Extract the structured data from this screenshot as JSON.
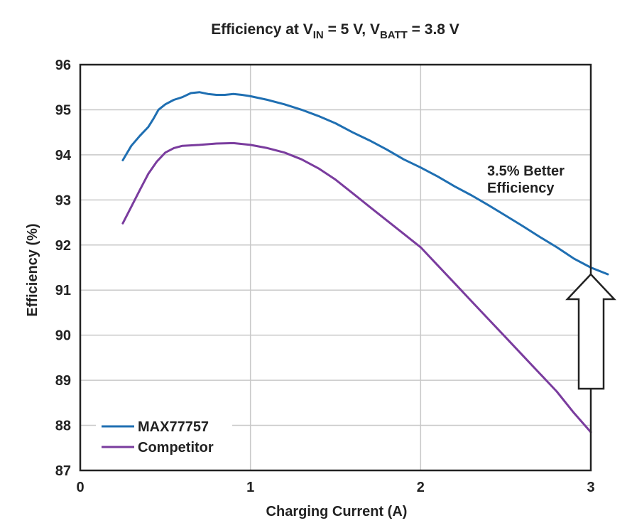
{
  "chart_data": {
    "type": "line",
    "title": {
      "prefix": "Efficiency at V",
      "sub1": "IN",
      "mid": " = 5 V, V",
      "sub2": "BATT",
      "suffix": " = 3.8 V"
    },
    "xlabel": "Charging Current (A)",
    "ylabel": "Efficiency (%)",
    "xlim": [
      0,
      3.1
    ],
    "ylim": [
      87,
      96
    ],
    "xticks": [
      0,
      1,
      2,
      3
    ],
    "yticks": [
      87,
      88,
      89,
      90,
      91,
      92,
      93,
      94,
      95,
      96
    ],
    "grid": true,
    "legend_position": "bottom-left",
    "series": [
      {
        "name": "MAX77757",
        "color": "#1f6fb2",
        "x": [
          0.25,
          0.3,
          0.35,
          0.4,
          0.43,
          0.46,
          0.5,
          0.55,
          0.6,
          0.65,
          0.7,
          0.75,
          0.8,
          0.85,
          0.9,
          0.95,
          1.0,
          1.1,
          1.2,
          1.3,
          1.4,
          1.5,
          1.6,
          1.7,
          1.8,
          1.9,
          2.0,
          2.1,
          2.2,
          2.3,
          2.4,
          2.5,
          2.6,
          2.7,
          2.8,
          2.9,
          3.0,
          3.1
        ],
        "values": [
          93.88,
          94.2,
          94.42,
          94.62,
          94.8,
          95.0,
          95.12,
          95.22,
          95.28,
          95.37,
          95.39,
          95.35,
          95.33,
          95.33,
          95.35,
          95.33,
          95.3,
          95.22,
          95.12,
          95.0,
          94.86,
          94.7,
          94.5,
          94.32,
          94.12,
          93.9,
          93.72,
          93.52,
          93.3,
          93.1,
          92.88,
          92.65,
          92.42,
          92.18,
          91.95,
          91.7,
          91.5,
          91.35
        ]
      },
      {
        "name": "Competitor",
        "color": "#7a3c9e",
        "x": [
          0.25,
          0.3,
          0.35,
          0.4,
          0.45,
          0.5,
          0.55,
          0.6,
          0.7,
          0.8,
          0.9,
          1.0,
          1.1,
          1.2,
          1.3,
          1.4,
          1.5,
          1.6,
          1.7,
          1.8,
          1.9,
          2.0,
          2.1,
          2.2,
          2.3,
          2.4,
          2.5,
          2.6,
          2.7,
          2.8,
          2.9,
          3.0
        ],
        "values": [
          92.48,
          92.85,
          93.22,
          93.58,
          93.85,
          94.05,
          94.15,
          94.2,
          94.22,
          94.25,
          94.26,
          94.22,
          94.15,
          94.05,
          93.9,
          93.7,
          93.45,
          93.15,
          92.85,
          92.55,
          92.25,
          91.95,
          91.55,
          91.15,
          90.75,
          90.35,
          89.95,
          89.55,
          89.15,
          88.75,
          88.28,
          87.85
        ]
      }
    ],
    "annotations": [
      {
        "line1": "3.5% Better",
        "line2": "Efficiency"
      }
    ]
  }
}
